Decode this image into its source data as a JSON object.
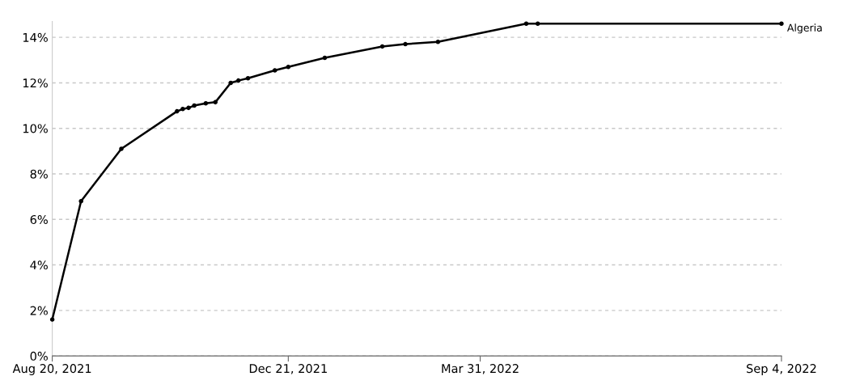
{
  "chart_data": {
    "type": "line",
    "marker": "circle",
    "line_style": "solid",
    "grid": "y",
    "legend": false,
    "xlim": [
      "2021-08-20",
      "2022-09-04"
    ],
    "xticks": [
      {
        "value": "2021-08-20",
        "label": "Aug 20, 2021"
      },
      {
        "value": "2021-12-21",
        "label": "Dec 21, 2021"
      },
      {
        "value": "2022-03-31",
        "label": "Mar 31, 2022"
      },
      {
        "value": "2022-09-04",
        "label": "Sep 4, 2022"
      }
    ],
    "ylim": [
      0,
      14.7
    ],
    "yticks": [
      {
        "value": 0,
        "label": "0%"
      },
      {
        "value": 2,
        "label": "2%"
      },
      {
        "value": 4,
        "label": "4%"
      },
      {
        "value": 6,
        "label": "6%"
      },
      {
        "value": 8,
        "label": "8%"
      },
      {
        "value": 10,
        "label": "10%"
      },
      {
        "value": 12,
        "label": "12%"
      },
      {
        "value": 14,
        "label": "14%"
      }
    ],
    "x": [
      "2021-08-20",
      "2021-09-04",
      "2021-09-25",
      "2021-10-24",
      "2021-10-27",
      "2021-10-30",
      "2021-11-02",
      "2021-11-08",
      "2021-11-13",
      "2021-11-21",
      "2021-11-25",
      "2021-11-30",
      "2021-12-14",
      "2021-12-21",
      "2022-01-09",
      "2022-02-08",
      "2022-02-20",
      "2022-03-09",
      "2022-04-24",
      "2022-04-30",
      "2022-09-04"
    ],
    "series": [
      {
        "name": "Algeria",
        "color": "#000000",
        "values": [
          1.6,
          6.8,
          9.1,
          10.75,
          10.85,
          10.9,
          11.0,
          11.1,
          11.15,
          12.0,
          12.1,
          12.2,
          12.55,
          12.7,
          13.1,
          13.6,
          13.7,
          13.8,
          14.6,
          14.6,
          14.6
        ]
      }
    ]
  }
}
